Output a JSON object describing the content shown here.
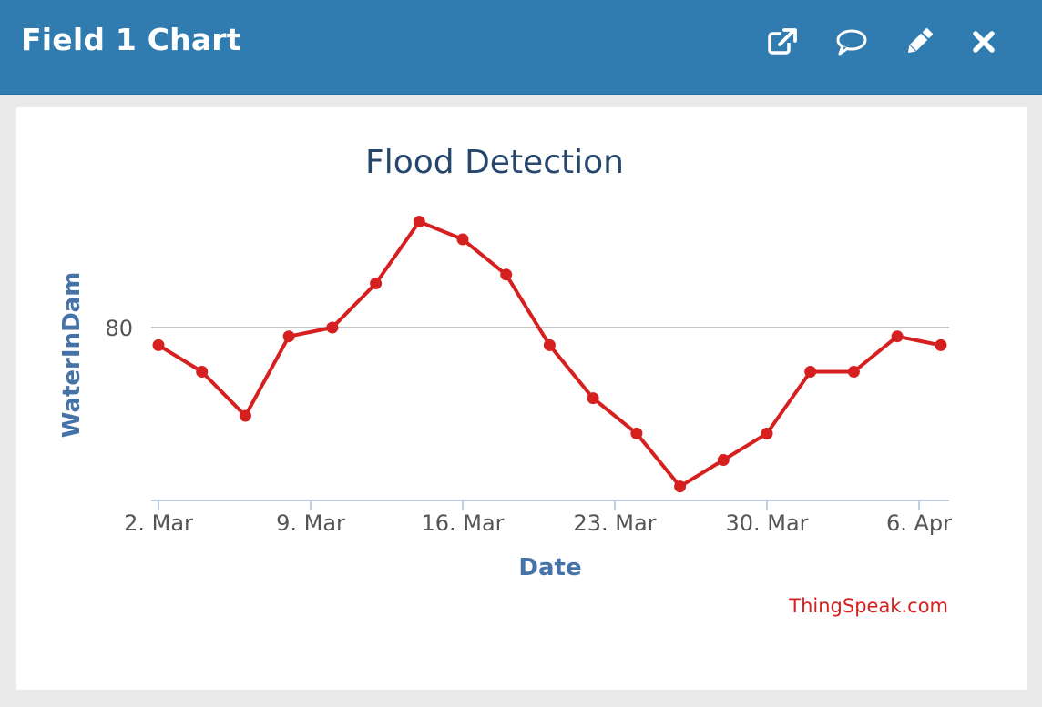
{
  "window": {
    "title": "Field 1 Chart",
    "header_color": "#307bb0",
    "actions": [
      {
        "icon": "external-link-icon"
      },
      {
        "icon": "comment-icon"
      },
      {
        "icon": "pencil-icon"
      },
      {
        "icon": "close-icon"
      }
    ]
  },
  "chart_data": {
    "type": "line",
    "title": "Flood Detection",
    "xlabel": "Date",
    "ylabel": "WaterInDam",
    "credit": "ThingSpeak.com",
    "x_tick_labels": [
      "2. Mar",
      "9. Mar",
      "16. Mar",
      "23. Mar",
      "30. Mar",
      "6. Apr"
    ],
    "y_tick_labels": [
      "80"
    ],
    "grid": true,
    "line_color": "#d62020",
    "series": [
      {
        "x": [
          "2. Mar",
          "4. Mar",
          "6. Mar",
          "8. Mar",
          "10. Mar",
          "12. Mar",
          "14. Mar",
          "16. Mar",
          "18. Mar",
          "20. Mar",
          "22. Mar",
          "24. Mar",
          "26. Mar",
          "28. Mar",
          "30. Mar",
          "1. Apr",
          "3. Apr",
          "5. Apr",
          "7. Apr"
        ],
        "values": [
          78,
          75,
          70,
          79,
          80,
          85,
          92,
          90,
          86,
          78,
          72,
          68,
          62,
          65,
          68,
          75,
          75,
          79,
          78
        ]
      }
    ]
  }
}
